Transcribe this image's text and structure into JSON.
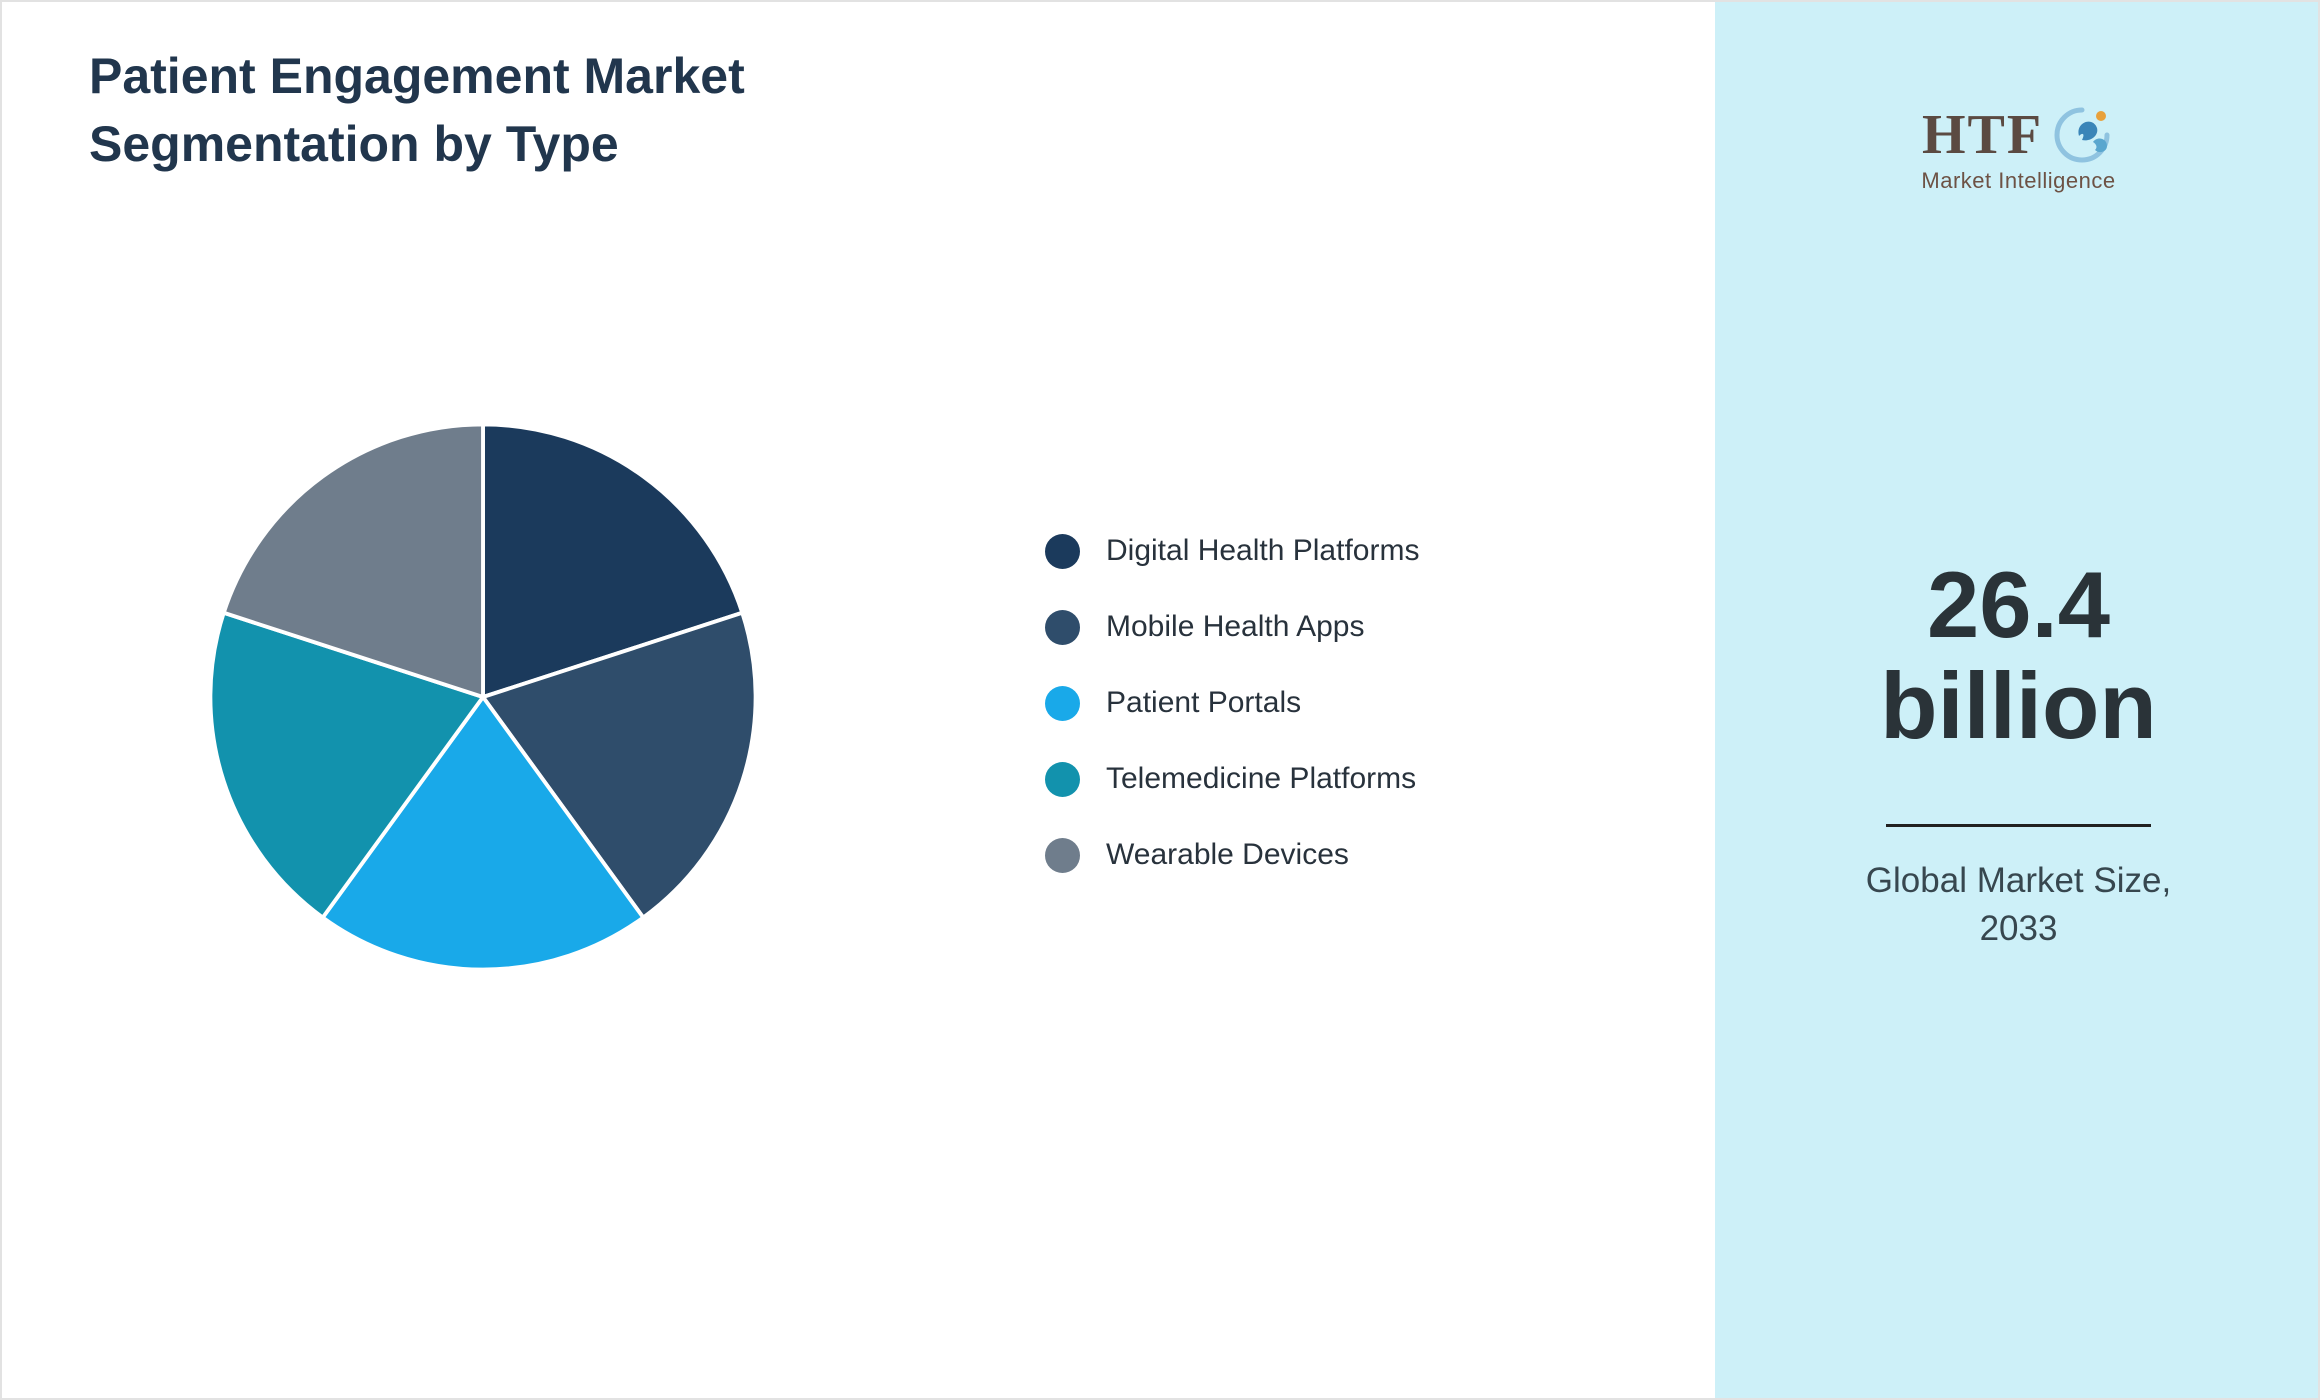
{
  "header": {
    "title_line1": "Patient Engagement Market",
    "title_line2": "Segmentation by Type"
  },
  "chart_data": {
    "type": "pie",
    "title": "Patient Engagement Market Segmentation by Type",
    "categories": [
      "Digital Health Platforms",
      "Mobile Health Apps",
      "Patient Portals",
      "Telemedicine Platforms",
      "Wearable Devices"
    ],
    "values": [
      20,
      20,
      20,
      20,
      20
    ],
    "colors": [
      "#1b3a5c",
      "#2f4d6b",
      "#19a9e9",
      "#1292ad",
      "#6f7d8c"
    ],
    "legend_position": "right",
    "start_angle_deg": 0,
    "direction": "clockwise",
    "slice_border_color": "#ffffff"
  },
  "sidebar": {
    "logo_text": "HTF",
    "logo_subtext": "Market Intelligence",
    "stat_value_line1": "26.4",
    "stat_value_line2": "billion",
    "stat_label_line1": "Global Market Size,",
    "stat_label_line2": "2033",
    "background_color": "#cdf0f8"
  }
}
